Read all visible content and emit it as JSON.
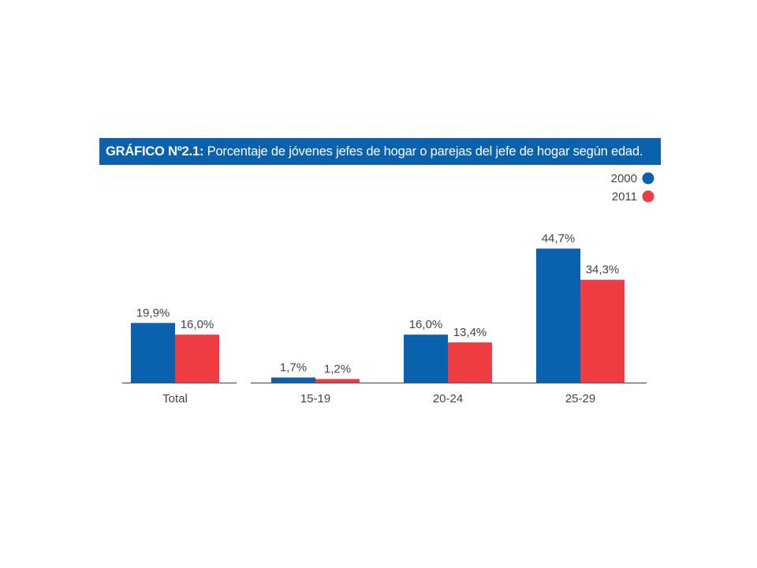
{
  "chart_data": {
    "type": "bar",
    "title_prefix": "GRÁFICO Nº2.1:",
    "title": "Porcentaje de jóvenes jefes de hogar o parejas del jefe de hogar según edad.",
    "categories": [
      "Total",
      "15-19",
      "20-24",
      "25-29"
    ],
    "series": [
      {
        "name": "2000",
        "color": "#0a61ad",
        "values": [
          19.9,
          1.7,
          16.0,
          44.7
        ],
        "labels": [
          "19,9%",
          "1,7%",
          "16,0%",
          "44,7%"
        ]
      },
      {
        "name": "2011",
        "color": "#ef3b42",
        "values": [
          16.0,
          1.2,
          13.4,
          34.3
        ],
        "labels": [
          "16,0%",
          "1,2%",
          "13,4%",
          "34,3%"
        ]
      }
    ],
    "legend_position": "top-right",
    "grid": false
  }
}
